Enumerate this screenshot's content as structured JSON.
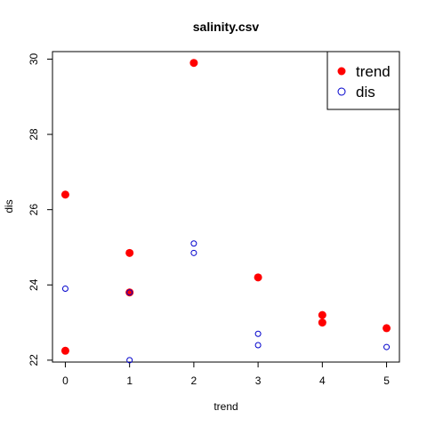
{
  "chart_data": {
    "type": "scatter",
    "title": "salinity.csv",
    "xlabel": "trend",
    "ylabel": "dis",
    "xlim": [
      -0.2,
      5.2
    ],
    "ylim": [
      21.95,
      30.2
    ],
    "x_ticks": [
      0,
      1,
      2,
      3,
      4,
      5
    ],
    "y_ticks": [
      22,
      24,
      26,
      28,
      30
    ],
    "grid": false,
    "legend_position": "top-right",
    "series": [
      {
        "name": "trend",
        "marker": "filled-circle",
        "color": "#ff0000",
        "points": [
          [
            0,
            26.4
          ],
          [
            0,
            22.25
          ],
          [
            1,
            24.85
          ],
          [
            1,
            23.8
          ],
          [
            2,
            29.9
          ],
          [
            3,
            24.2
          ],
          [
            4,
            23.2
          ],
          [
            4,
            23.0
          ],
          [
            5,
            22.85
          ]
        ]
      },
      {
        "name": "dis",
        "marker": "open-circle",
        "color": "#0000cc",
        "points": [
          [
            0,
            23.9
          ],
          [
            1,
            23.8
          ],
          [
            1,
            22.0
          ],
          [
            2,
            25.1
          ],
          [
            2,
            24.85
          ],
          [
            3,
            22.7
          ],
          [
            3,
            22.4
          ],
          [
            5,
            22.35
          ]
        ]
      }
    ]
  }
}
